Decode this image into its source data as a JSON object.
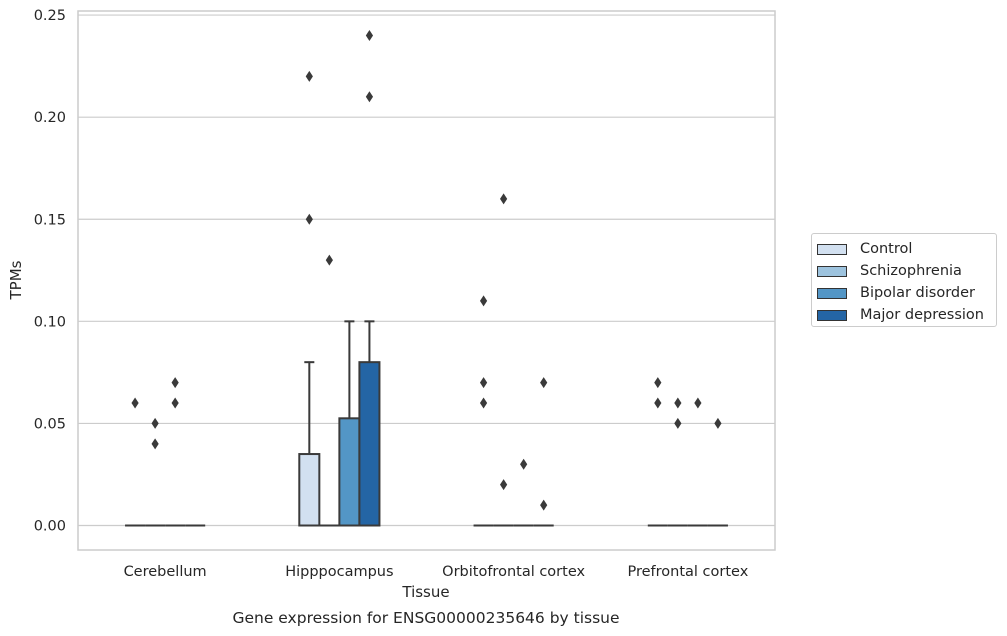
{
  "chart_data": {
    "type": "boxplot",
    "title": "",
    "caption": "Gene expression for ENSG00000235646 by tissue",
    "xlabel": "Tissue",
    "ylabel": "TPMs",
    "ylim": [
      -0.012,
      0.252
    ],
    "yticks": [
      "0.00",
      "0.05",
      "0.10",
      "0.15",
      "0.20",
      "0.25"
    ],
    "grid": "horizontal",
    "legend_position": "right",
    "categories": [
      "Cerebellum",
      "Hipppocampus",
      "Orbitofrontal cortex",
      "Prefrontal cortex"
    ],
    "series": [
      {
        "name": "Control",
        "color": "#d2e0f0",
        "boxes": [
          {
            "q1": 0,
            "q3": 0,
            "median": 0,
            "whisker_low": 0,
            "whisker_high": 0,
            "outliers": [
              0.06
            ]
          },
          {
            "q1": 0,
            "q3": 0.035,
            "median": 0,
            "whisker_low": 0,
            "whisker_high": 0.08,
            "outliers": [
              0.22,
              0.15
            ]
          },
          {
            "q1": 0,
            "q3": 0,
            "median": 0,
            "whisker_low": 0,
            "whisker_high": 0,
            "outliers": [
              0.11,
              0.07,
              0.06
            ]
          },
          {
            "q1": 0,
            "q3": 0,
            "median": 0,
            "whisker_low": 0,
            "whisker_high": 0,
            "outliers": [
              0.07,
              0.06
            ]
          }
        ]
      },
      {
        "name": "Schizophrenia",
        "color": "#9dc3de",
        "boxes": [
          {
            "q1": 0,
            "q3": 0,
            "median": 0,
            "whisker_low": 0,
            "whisker_high": 0,
            "outliers": [
              0.05,
              0.04
            ]
          },
          {
            "q1": 0,
            "q3": 0,
            "median": 0,
            "whisker_low": 0,
            "whisker_high": 0,
            "outliers": [
              0.13
            ]
          },
          {
            "q1": 0,
            "q3": 0,
            "median": 0,
            "whisker_low": 0,
            "whisker_high": 0,
            "outliers": [
              0.16,
              0.02
            ]
          },
          {
            "q1": 0,
            "q3": 0,
            "median": 0,
            "whisker_low": 0,
            "whisker_high": 0,
            "outliers": [
              0.06,
              0.05
            ]
          }
        ]
      },
      {
        "name": "Bipolar disorder",
        "color": "#5396c6",
        "boxes": [
          {
            "q1": 0,
            "q3": 0,
            "median": 0,
            "whisker_low": 0,
            "whisker_high": 0,
            "outliers": [
              0.07,
              0.06
            ]
          },
          {
            "q1": 0,
            "q3": 0.0525,
            "median": 0,
            "whisker_low": 0,
            "whisker_high": 0.1,
            "outliers": []
          },
          {
            "q1": 0,
            "q3": 0,
            "median": 0,
            "whisker_low": 0,
            "whisker_high": 0,
            "outliers": [
              0.03
            ]
          },
          {
            "q1": 0,
            "q3": 0,
            "median": 0,
            "whisker_low": 0,
            "whisker_high": 0,
            "outliers": [
              0.06
            ]
          }
        ]
      },
      {
        "name": "Major depression",
        "color": "#2465a5",
        "boxes": [
          {
            "q1": 0,
            "q3": 0,
            "median": 0,
            "whisker_low": 0,
            "whisker_high": 0,
            "outliers": []
          },
          {
            "q1": 0,
            "q3": 0.08,
            "median": 0,
            "whisker_low": 0,
            "whisker_high": 0.1,
            "outliers": [
              0.24,
              0.21
            ]
          },
          {
            "q1": 0,
            "q3": 0,
            "median": 0,
            "whisker_low": 0,
            "whisker_high": 0,
            "outliers": [
              0.07,
              0.01
            ]
          },
          {
            "q1": 0,
            "q3": 0,
            "median": 0,
            "whisker_low": 0,
            "whisker_high": 0,
            "outliers": [
              0.05
            ]
          }
        ]
      }
    ]
  }
}
